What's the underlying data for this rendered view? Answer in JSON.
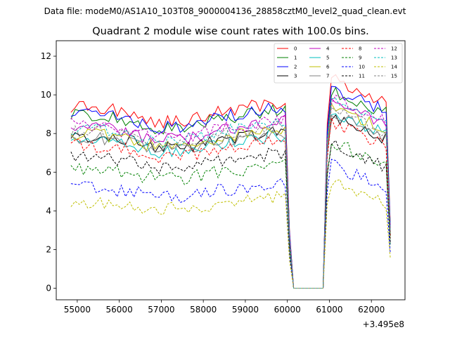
{
  "chart_data": {
    "type": "line",
    "suptitle": "Data file: modeM0/AS1A10_103T08_9000004136_28858cztM0_level2_quad_clean.evt",
    "title": "Quadrant 2 module wise count rates with 100.0s bins.",
    "xlabel": "",
    "ylabel": "",
    "x_offset_label": "+3.495e8",
    "xlim": [
      54500,
      62800
    ],
    "ylim": [
      -0.6,
      12.8
    ],
    "xticks": [
      55000,
      56000,
      57000,
      58000,
      59000,
      60000,
      61000,
      62000
    ],
    "yticks": [
      0,
      2,
      4,
      6,
      8,
      10,
      12
    ],
    "x_range": {
      "start": 54850,
      "end": 62450,
      "step": 100
    },
    "gap": {
      "drop_start": 60050,
      "zero_from": 60100,
      "zero_to": 60850,
      "rise_end": 60950
    },
    "series": [
      {
        "name": "0",
        "color": "#ff0000",
        "style": "solid",
        "level": 9.4,
        "post": 10.9
      },
      {
        "name": "1",
        "color": "#008000",
        "style": "solid",
        "level": 9.0,
        "post": 10.3
      },
      {
        "name": "2",
        "color": "#0000ff",
        "style": "solid",
        "level": 9.1,
        "post": 10.4
      },
      {
        "name": "3",
        "color": "#000000",
        "style": "solid",
        "level": 7.9,
        "post": 9.0
      },
      {
        "name": "4",
        "color": "#bf00bf",
        "style": "solid",
        "level": 8.4,
        "post": 9.7
      },
      {
        "name": "5",
        "color": "#00bfbf",
        "style": "solid",
        "level": 7.7,
        "post": 9.2
      },
      {
        "name": "6",
        "color": "#bfbf00",
        "style": "solid",
        "level": 8.0,
        "post": 9.4
      },
      {
        "name": "7",
        "color": "#808080",
        "style": "solid",
        "level": 7.8,
        "post": 9.1
      },
      {
        "name": "8",
        "color": "#ff0000",
        "style": "dashed",
        "level": 7.4,
        "post": 8.6
      },
      {
        "name": "9",
        "color": "#008000",
        "style": "dashed",
        "level": 6.2,
        "post": 7.6
      },
      {
        "name": "10",
        "color": "#0000ff",
        "style": "dashed",
        "level": 5.2,
        "post": 6.4
      },
      {
        "name": "11",
        "color": "#000000",
        "style": "dashed",
        "level": 6.8,
        "post": 7.5
      },
      {
        "name": "12",
        "color": "#bf00bf",
        "style": "dashed",
        "level": 8.5,
        "post": 9.9
      },
      {
        "name": "13",
        "color": "#00bfbf",
        "style": "dashed",
        "level": 8.3,
        "post": 9.8
      },
      {
        "name": "14",
        "color": "#bfbf00",
        "style": "dashed",
        "level": 4.5,
        "post": 5.6
      },
      {
        "name": "15",
        "color": "#808080",
        "style": "dashed",
        "level": 8.1,
        "post": 9.3
      }
    ]
  }
}
